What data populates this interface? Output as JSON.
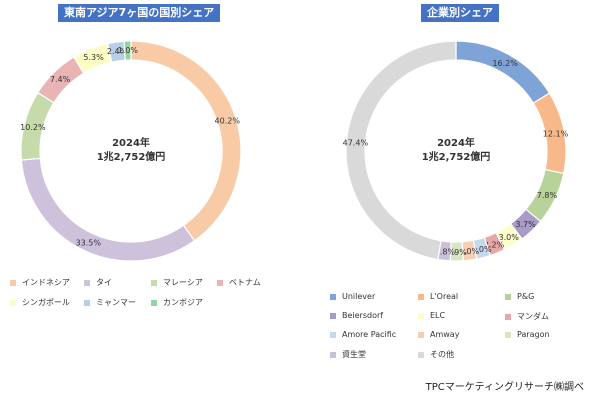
{
  "chart_data": [
    {
      "type": "pie",
      "title": "東南アジア7ヶ国の国別シェア",
      "center_text": [
        "2024年",
        "1兆2,752億円"
      ],
      "series": [
        {
          "name": "インドネシア",
          "value": 40.2,
          "label": "40.2%",
          "color": "#f8cba6"
        },
        {
          "name": "タイ",
          "value": 33.5,
          "label": "33.5%",
          "color": "#cdc1dc"
        },
        {
          "name": "マレーシア",
          "value": 10.2,
          "label": "10.2%",
          "color": "#c5dcaa"
        },
        {
          "name": "ベトナム",
          "value": 7.4,
          "label": "7.4%",
          "color": "#e8b4b4"
        },
        {
          "name": "シンガポール",
          "value": 5.3,
          "label": "5.3%",
          "color": "#fdfcc5"
        },
        {
          "name": "ミャンマー",
          "value": 2.4,
          "label": "2.4%",
          "color": "#b8cfe8"
        },
        {
          "name": "カンボジア",
          "value": 1.0,
          "label": "1.0%",
          "color": "#8fd6a0"
        }
      ]
    },
    {
      "type": "pie",
      "title": "企業別シェア",
      "center_text": [
        "2024年",
        "1兆2,752億円"
      ],
      "series": [
        {
          "name": "Unilever",
          "value": 16.2,
          "label": "16.2%",
          "color": "#7ea3d6"
        },
        {
          "name": "L'Oreal",
          "value": 12.1,
          "label": "12.1%",
          "color": "#f8b98a"
        },
        {
          "name": "P&G",
          "value": 7.8,
          "label": "7.8%",
          "color": "#b7d39a"
        },
        {
          "name": "Beiersdorf",
          "value": 3.7,
          "label": "3.7%",
          "color": "#a99bc8"
        },
        {
          "name": "ELC",
          "value": 3.0,
          "label": "3.0%",
          "color": "#fefcc8"
        },
        {
          "name": "マンダム",
          "value": 2.2,
          "label": "2.2%",
          "color": "#e8a7a7"
        },
        {
          "name": "Amore Pacific",
          "value": 2.0,
          "label": "2.0%",
          "color": "#c5d8ee"
        },
        {
          "name": "Amway",
          "value": 2.0,
          "label": "2.0%",
          "color": "#f9cdb0"
        },
        {
          "name": "Paragon",
          "value": 1.9,
          "label": "1.9%",
          "color": "#d7e5c0"
        },
        {
          "name": "資生堂",
          "value": 1.8,
          "label": "1.8%",
          "color": "#c9c0dc"
        },
        {
          "name": "その他",
          "value": 47.4,
          "label": "47.4%",
          "color": "#d9d9d9"
        }
      ]
    }
  ],
  "source_text": "TPCマーケティングリサーチ㈱調べ"
}
